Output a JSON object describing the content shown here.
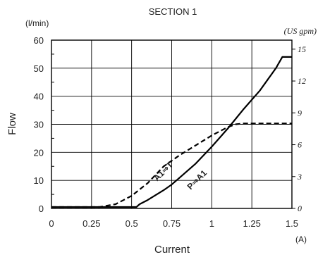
{
  "chart_data": {
    "type": "line",
    "title": "SECTION 1",
    "xlabel": "Current",
    "ylabel": "Flow",
    "x_unit": "(A)",
    "y_unit": "(l/min)",
    "y2_unit": "(US gpm)",
    "xlim": [
      0,
      1.5
    ],
    "ylim": [
      0,
      60
    ],
    "y2lim": [
      0,
      15.85
    ],
    "x_ticks": [
      0,
      0.25,
      0.5,
      0.75,
      1,
      1.25,
      1.5
    ],
    "x_tick_labels": [
      "0",
      "0.25",
      "0.5",
      "0.75",
      "1",
      "1.25",
      "1.5"
    ],
    "y_ticks": [
      0,
      10,
      20,
      30,
      40,
      50,
      60
    ],
    "y_tick_labels": [
      "0",
      "10",
      "20",
      "30",
      "40",
      "50",
      "60"
    ],
    "y2_ticks": [
      0,
      3,
      6,
      9,
      12,
      15
    ],
    "y2_tick_labels": [
      "0",
      "3",
      "6",
      "9",
      "12",
      "15"
    ],
    "grid": true,
    "series": [
      {
        "name": "P⇒A1",
        "style": "solid",
        "color": "#000000",
        "x": [
          0,
          0.53,
          0.55,
          0.6,
          0.7,
          0.75,
          0.8,
          0.9,
          1.0,
          1.1,
          1.2,
          1.3,
          1.4,
          1.44,
          1.5
        ],
        "y": [
          0.5,
          0.5,
          1.5,
          3,
          6.5,
          8.5,
          11,
          16,
          22,
          28.5,
          35.5,
          42,
          50,
          54,
          54
        ]
      },
      {
        "name": "A1⇒T",
        "style": "dashed",
        "color": "#000000",
        "x": [
          0,
          0.3,
          0.4,
          0.5,
          0.6,
          0.7,
          0.8,
          0.9,
          1.0,
          1.1,
          1.15,
          1.2,
          1.3,
          1.4,
          1.5
        ],
        "y": [
          0.5,
          0.5,
          1.5,
          4.5,
          9,
          15,
          19,
          22.5,
          26,
          29,
          30,
          30.3,
          30.3,
          30.3,
          30.3
        ]
      }
    ],
    "annotations": [
      {
        "text": "A1⇒T",
        "x": 0.71,
        "y": 12.5,
        "angle": -45
      },
      {
        "text": "P⇒A1",
        "x": 0.92,
        "y": 9.5,
        "angle": -45
      }
    ]
  }
}
